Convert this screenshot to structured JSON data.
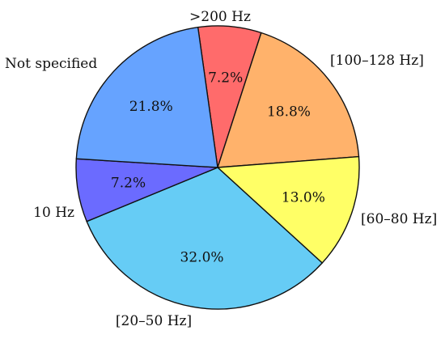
{
  "chart_data": {
    "type": "pie",
    "start_angle_deg": 98,
    "direction": "clockwise",
    "slices": [
      {
        "label": ">200 Hz",
        "value": 7.2,
        "display": "7.2%",
        "color": "#ff6b6b"
      },
      {
        "label": "[100–128 Hz]",
        "value": 18.8,
        "display": "18.8%",
        "color": "#ffb26b"
      },
      {
        "label": "[60–80 Hz]",
        "value": 13.0,
        "display": "13.0%",
        "color": "#ffff66"
      },
      {
        "label": "[20–50 Hz]",
        "value": 32.0,
        "display": "32.0%",
        "color": "#66ccf5"
      },
      {
        "label": "10 Hz",
        "value": 7.2,
        "display": "7.2%",
        "color": "#6b6bff"
      },
      {
        "label": "Not specified",
        "value": 21.8,
        "display": "21.8%",
        "color": "#66a3ff"
      }
    ]
  }
}
